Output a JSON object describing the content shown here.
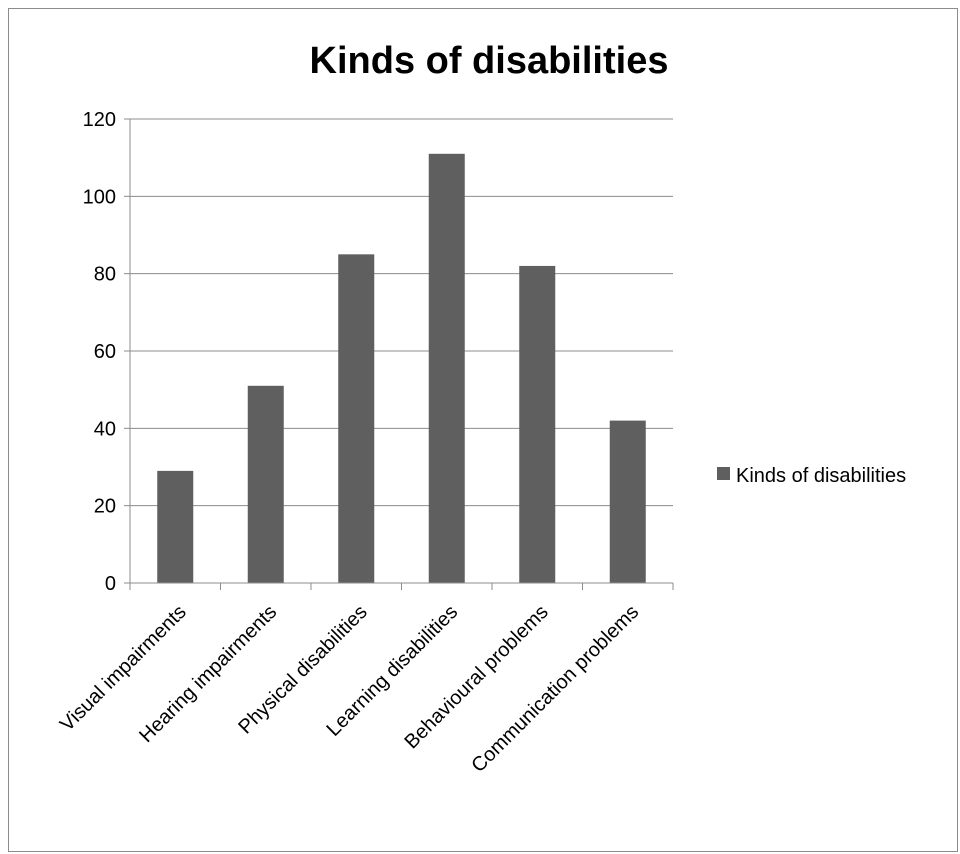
{
  "chart_data": {
    "type": "bar",
    "title": "Kinds of disabilities",
    "xlabel": "",
    "ylabel": "",
    "categories": [
      "Visual impairments",
      "Hearing impairments",
      "Physical disabilities",
      "Learning disabilities",
      "Behavioural problems",
      "Communication problems"
    ],
    "series": [
      {
        "name": "Kinds of disabilities",
        "values": [
          29,
          51,
          85,
          111,
          82,
          42
        ]
      }
    ],
    "ylim": [
      0,
      120
    ],
    "yticks": [
      0,
      20,
      40,
      60,
      80,
      100,
      120
    ],
    "grid": true,
    "legend_position": "right",
    "colors": {
      "bar": "#5f5f5f",
      "grid": "#8c8c8c",
      "axis": "#8c8c8c",
      "text": "#000000"
    }
  }
}
